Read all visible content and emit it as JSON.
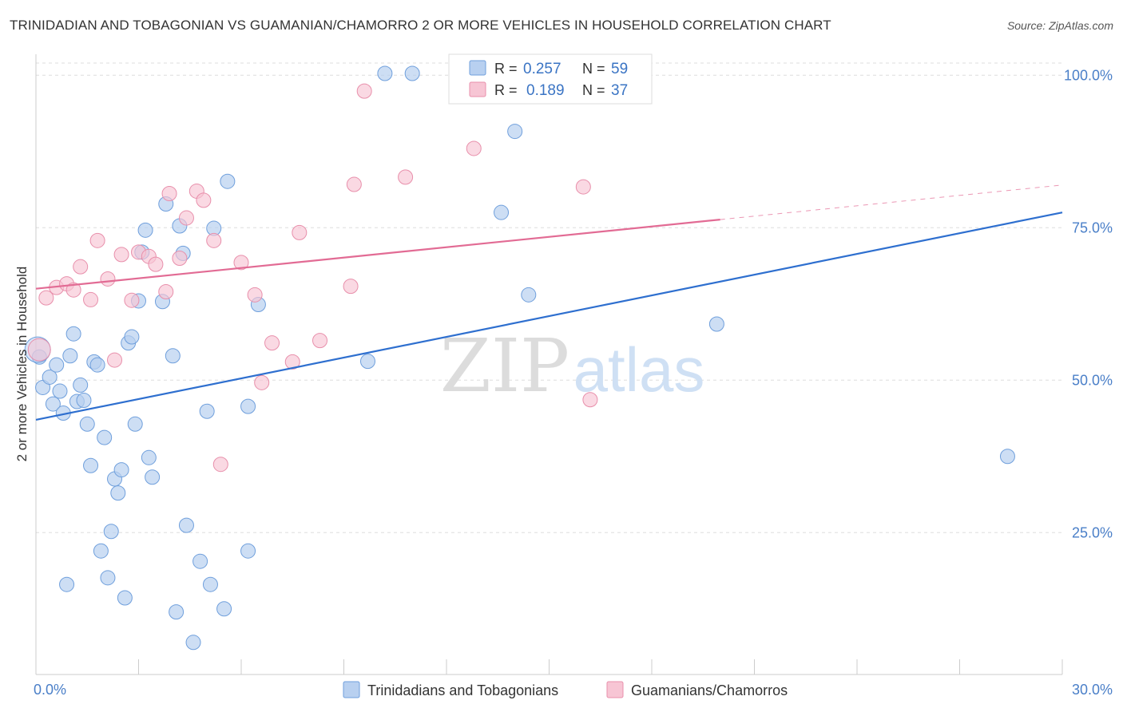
{
  "title": "TRINIDADIAN AND TOBAGONIAN VS GUAMANIAN/CHAMORRO 2 OR MORE VEHICLES IN HOUSEHOLD CORRELATION CHART",
  "source": "Source: ZipAtlas.com",
  "watermark": {
    "zip": "ZIP",
    "atlas": "atlas"
  },
  "colors": {
    "blue_fill": "#b8d0f0",
    "blue_stroke": "#6f9fdc",
    "blue_line": "#2e6fcf",
    "pink_fill": "#f7c5d4",
    "pink_stroke": "#e88fab",
    "pink_line": "#e26b94",
    "tick_text": "#4a7fc8",
    "grid": "#dddddd"
  },
  "legend": {
    "rows": [
      {
        "r_label": "R =",
        "r_value": "0.257",
        "n_label": "N =",
        "n_value": "59"
      },
      {
        "r_label": "R =",
        "r_value": "0.189",
        "n_label": "N =",
        "n_value": "37"
      }
    ]
  },
  "bottom_legend": [
    "Trinidadians and Tobagonians",
    "Guamanians/Chamorros"
  ],
  "chart_data": {
    "type": "scatter",
    "ylabel": "2 or more Vehicles in Household",
    "xlabel": "",
    "xlim": [
      0,
      30
    ],
    "ylim": [
      2,
      102
    ],
    "x_tick_labels": [
      "0.0%",
      "30.0%"
    ],
    "y_ticks": [
      25,
      50,
      75,
      100
    ],
    "y_tick_labels": [
      "25.0%",
      "50.0%",
      "75.0%",
      "100.0%"
    ],
    "grid": true,
    "legend_position": "top-center",
    "series": [
      {
        "name": "Trinidadians and Tobagonians",
        "stats": {
          "R": 0.257,
          "N": 59
        },
        "trend": {
          "x0": 0,
          "y0": 43.5,
          "x1": 30,
          "y1": 77.5,
          "dashed_from": null
        },
        "points": [
          [
            0.1,
            53.8
          ],
          [
            0.2,
            48.8
          ],
          [
            0.4,
            50.5
          ],
          [
            0.5,
            46.1
          ],
          [
            0.6,
            52.5
          ],
          [
            0.7,
            48.2
          ],
          [
            0.8,
            44.6
          ],
          [
            0.9,
            16.5
          ],
          [
            1.0,
            54.0
          ],
          [
            1.1,
            57.6
          ],
          [
            1.2,
            46.5
          ],
          [
            1.3,
            49.2
          ],
          [
            1.4,
            46.7
          ],
          [
            1.5,
            42.8
          ],
          [
            1.6,
            36.0
          ],
          [
            1.7,
            53.0
          ],
          [
            1.8,
            52.5
          ],
          [
            1.9,
            22.0
          ],
          [
            2.0,
            40.6
          ],
          [
            2.1,
            17.6
          ],
          [
            2.2,
            25.2
          ],
          [
            2.3,
            33.8
          ],
          [
            2.4,
            31.5
          ],
          [
            2.5,
            35.3
          ],
          [
            2.6,
            14.3
          ],
          [
            2.7,
            56.1
          ],
          [
            2.8,
            57.1
          ],
          [
            2.9,
            42.8
          ],
          [
            3.0,
            63.0
          ],
          [
            3.1,
            71.0
          ],
          [
            3.2,
            74.6
          ],
          [
            3.3,
            37.3
          ],
          [
            3.4,
            34.1
          ],
          [
            3.7,
            62.9
          ],
          [
            3.8,
            78.9
          ],
          [
            4.0,
            54.0
          ],
          [
            4.1,
            12.0
          ],
          [
            4.2,
            75.3
          ],
          [
            4.3,
            70.8
          ],
          [
            4.4,
            26.2
          ],
          [
            4.6,
            7.0
          ],
          [
            4.8,
            20.3
          ],
          [
            5.0,
            44.9
          ],
          [
            5.1,
            16.5
          ],
          [
            5.2,
            74.9
          ],
          [
            5.5,
            12.5
          ],
          [
            5.6,
            82.6
          ],
          [
            6.2,
            45.7
          ],
          [
            6.2,
            22.0
          ],
          [
            6.5,
            62.4
          ],
          [
            9.7,
            53.1
          ],
          [
            10.2,
            100.3
          ],
          [
            11.0,
            100.3
          ],
          [
            13.6,
            77.5
          ],
          [
            14.0,
            90.8
          ],
          [
            14.4,
            64.0
          ],
          [
            19.9,
            59.2
          ],
          [
            28.4,
            37.5
          ],
          [
            0.05,
            55.0
          ]
        ]
      },
      {
        "name": "Guamanians/Chamorros",
        "stats": {
          "R": 0.189,
          "N": 37
        },
        "trend": {
          "x0": 0,
          "y0": 65.0,
          "x1": 30,
          "y1": 82.0,
          "dashed_from": 20.0
        },
        "points": [
          [
            0.1,
            55.0
          ],
          [
            0.3,
            63.5
          ],
          [
            0.6,
            65.2
          ],
          [
            0.9,
            65.8
          ],
          [
            1.1,
            64.8
          ],
          [
            1.3,
            68.6
          ],
          [
            1.6,
            63.2
          ],
          [
            1.8,
            72.9
          ],
          [
            2.1,
            66.6
          ],
          [
            2.3,
            53.3
          ],
          [
            2.5,
            70.6
          ],
          [
            2.8,
            63.1
          ],
          [
            3.0,
            71.0
          ],
          [
            3.3,
            70.3
          ],
          [
            3.5,
            69.0
          ],
          [
            3.8,
            64.5
          ],
          [
            3.9,
            80.6
          ],
          [
            4.2,
            70.0
          ],
          [
            4.4,
            76.6
          ],
          [
            4.7,
            81.0
          ],
          [
            4.9,
            79.5
          ],
          [
            5.2,
            72.9
          ],
          [
            5.4,
            36.2
          ],
          [
            6.0,
            69.3
          ],
          [
            6.4,
            64.0
          ],
          [
            6.6,
            49.6
          ],
          [
            6.9,
            56.1
          ],
          [
            7.5,
            53.0
          ],
          [
            7.7,
            74.2
          ],
          [
            8.3,
            56.5
          ],
          [
            9.2,
            65.4
          ],
          [
            9.3,
            82.1
          ],
          [
            9.6,
            97.4
          ],
          [
            10.8,
            83.3
          ],
          [
            12.8,
            88.0
          ],
          [
            16.0,
            81.7
          ],
          [
            16.2,
            46.8
          ]
        ]
      }
    ]
  }
}
